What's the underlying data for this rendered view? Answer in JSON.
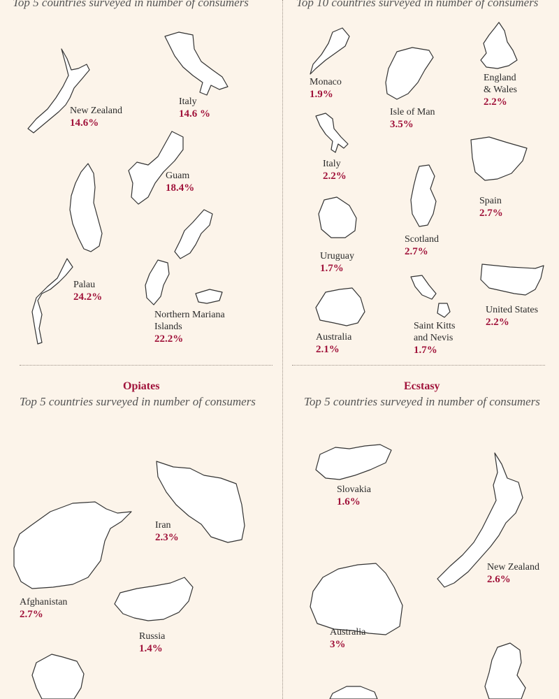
{
  "panels": {
    "top_left": {
      "subtitle": "Top 5 countries surveyed in number of consumers",
      "countries": [
        {
          "name": "New Zealand",
          "value": "14.6%"
        },
        {
          "name": "Italy",
          "value": "14.6 %"
        },
        {
          "name": "Guam",
          "value": "18.4%"
        },
        {
          "name": "Palau",
          "value": "24.2%"
        },
        {
          "name": "Northern Mariana\nIslands",
          "value": "22.2%"
        }
      ]
    },
    "top_right": {
      "subtitle": "Top 10 countries surveyed in number of consumers",
      "countries": [
        {
          "name": "Monaco",
          "value": "1.9%"
        },
        {
          "name": "Isle of Man",
          "value": "3.5%"
        },
        {
          "name": "England\n& Wales",
          "value": "2.2%"
        },
        {
          "name": "Italy",
          "value": "2.2%"
        },
        {
          "name": "Spain",
          "value": "2.7%"
        },
        {
          "name": "Scotland",
          "value": "2.7%"
        },
        {
          "name": "Uruguay",
          "value": "1.7%"
        },
        {
          "name": "Australia",
          "value": "2.1%"
        },
        {
          "name": "Saint Kitts\nand Nevis",
          "value": "1.7%"
        },
        {
          "name": "United States",
          "value": "2.2%"
        }
      ]
    },
    "bottom_left": {
      "title": "Opiates",
      "subtitle": "Top 5 countries surveyed in number of consumers",
      "countries": [
        {
          "name": "Iran",
          "value": "2.3%"
        },
        {
          "name": "Afghanistan",
          "value": "2.7%"
        },
        {
          "name": "Russia",
          "value": "1.4%"
        }
      ]
    },
    "bottom_right": {
      "title": "Ecstasy",
      "subtitle": "Top 5 countries surveyed in number of consumers",
      "countries": [
        {
          "name": "Slovakia",
          "value": "1.6%"
        },
        {
          "name": "New Zealand",
          "value": "2.6%"
        },
        {
          "name": "Australia",
          "value": "3%"
        }
      ]
    }
  },
  "colors": {
    "background": "#fcf4ea",
    "accent": "#a0123a",
    "divider": "#9a8f85"
  }
}
